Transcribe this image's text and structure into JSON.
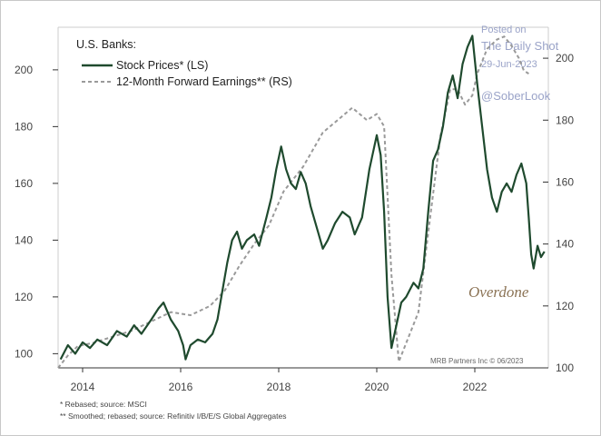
{
  "chart_data": {
    "type": "line",
    "title": "U.S. Banks:",
    "left_axis": {
      "ylim": [
        95,
        215
      ],
      "ticks": [
        100,
        120,
        140,
        160,
        180,
        200
      ]
    },
    "right_axis": {
      "ylim": [
        100,
        210
      ],
      "ticks": [
        100,
        120,
        140,
        160,
        180,
        200
      ]
    },
    "x_axis": {
      "xlim": [
        2013.5,
        2023.5
      ],
      "ticks": [
        2014,
        2016,
        2018,
        2020,
        2022
      ]
    },
    "grid": false,
    "legend_position": "top-left",
    "series": [
      {
        "name": "Stock Prices* (LS)",
        "axis": "left",
        "color": "#1f4a2e",
        "style": "solid",
        "points": [
          [
            2013.55,
            98
          ],
          [
            2013.7,
            103
          ],
          [
            2013.85,
            100
          ],
          [
            2014.0,
            104
          ],
          [
            2014.15,
            102
          ],
          [
            2014.3,
            105
          ],
          [
            2014.5,
            103
          ],
          [
            2014.7,
            108
          ],
          [
            2014.9,
            106
          ],
          [
            2015.05,
            110
          ],
          [
            2015.2,
            107
          ],
          [
            2015.4,
            112
          ],
          [
            2015.55,
            116
          ],
          [
            2015.65,
            118
          ],
          [
            2015.8,
            112
          ],
          [
            2015.95,
            108
          ],
          [
            2016.05,
            103
          ],
          [
            2016.1,
            98
          ],
          [
            2016.2,
            103
          ],
          [
            2016.35,
            105
          ],
          [
            2016.5,
            104
          ],
          [
            2016.65,
            107
          ],
          [
            2016.75,
            112
          ],
          [
            2016.85,
            122
          ],
          [
            2016.95,
            132
          ],
          [
            2017.05,
            140
          ],
          [
            2017.15,
            143
          ],
          [
            2017.25,
            137
          ],
          [
            2017.35,
            140
          ],
          [
            2017.5,
            142
          ],
          [
            2017.6,
            138
          ],
          [
            2017.75,
            148
          ],
          [
            2017.85,
            155
          ],
          [
            2017.95,
            165
          ],
          [
            2018.05,
            173
          ],
          [
            2018.15,
            165
          ],
          [
            2018.25,
            160
          ],
          [
            2018.35,
            158
          ],
          [
            2018.45,
            164
          ],
          [
            2018.55,
            160
          ],
          [
            2018.65,
            152
          ],
          [
            2018.8,
            143
          ],
          [
            2018.9,
            137
          ],
          [
            2019.0,
            140
          ],
          [
            2019.15,
            146
          ],
          [
            2019.3,
            150
          ],
          [
            2019.45,
            148
          ],
          [
            2019.55,
            142
          ],
          [
            2019.7,
            148
          ],
          [
            2019.85,
            165
          ],
          [
            2020.0,
            177
          ],
          [
            2020.08,
            170
          ],
          [
            2020.15,
            150
          ],
          [
            2020.22,
            120
          ],
          [
            2020.3,
            102
          ],
          [
            2020.4,
            110
          ],
          [
            2020.5,
            118
          ],
          [
            2020.6,
            120
          ],
          [
            2020.75,
            125
          ],
          [
            2020.85,
            123
          ],
          [
            2020.95,
            130
          ],
          [
            2021.05,
            150
          ],
          [
            2021.15,
            168
          ],
          [
            2021.25,
            172
          ],
          [
            2021.35,
            180
          ],
          [
            2021.45,
            192
          ],
          [
            2021.55,
            198
          ],
          [
            2021.65,
            190
          ],
          [
            2021.75,
            202
          ],
          [
            2021.85,
            208
          ],
          [
            2021.95,
            212
          ],
          [
            2022.05,
            195
          ],
          [
            2022.15,
            180
          ],
          [
            2022.25,
            165
          ],
          [
            2022.35,
            155
          ],
          [
            2022.45,
            150
          ],
          [
            2022.55,
            157
          ],
          [
            2022.65,
            160
          ],
          [
            2022.75,
            157
          ],
          [
            2022.85,
            163
          ],
          [
            2022.95,
            167
          ],
          [
            2023.05,
            160
          ],
          [
            2023.1,
            148
          ],
          [
            2023.15,
            135
          ],
          [
            2023.2,
            130
          ],
          [
            2023.28,
            138
          ],
          [
            2023.35,
            134
          ],
          [
            2023.42,
            136
          ]
        ]
      },
      {
        "name": "12-Month Forward Earnings** (RS)",
        "axis": "right",
        "color": "#9a9a9a",
        "style": "dashed",
        "points": [
          [
            2013.5,
            100
          ],
          [
            2013.7,
            104
          ],
          [
            2013.9,
            107
          ],
          [
            2014.2,
            108
          ],
          [
            2014.6,
            110
          ],
          [
            2015.0,
            112
          ],
          [
            2015.4,
            115
          ],
          [
            2015.8,
            118
          ],
          [
            2016.2,
            117
          ],
          [
            2016.6,
            120
          ],
          [
            2016.9,
            125
          ],
          [
            2017.2,
            133
          ],
          [
            2017.5,
            140
          ],
          [
            2017.8,
            146
          ],
          [
            2018.1,
            157
          ],
          [
            2018.5,
            165
          ],
          [
            2018.9,
            176
          ],
          [
            2019.2,
            180
          ],
          [
            2019.5,
            184
          ],
          [
            2019.8,
            180
          ],
          [
            2020.0,
            182
          ],
          [
            2020.15,
            178
          ],
          [
            2020.3,
            130
          ],
          [
            2020.45,
            102
          ],
          [
            2020.6,
            108
          ],
          [
            2020.85,
            118
          ],
          [
            2021.1,
            150
          ],
          [
            2021.3,
            175
          ],
          [
            2021.5,
            190
          ],
          [
            2021.65,
            190
          ],
          [
            2021.8,
            185
          ],
          [
            2021.95,
            188
          ],
          [
            2022.05,
            195
          ],
          [
            2022.25,
            203
          ],
          [
            2022.45,
            206
          ],
          [
            2022.6,
            207
          ],
          [
            2022.75,
            204
          ],
          [
            2022.9,
            200
          ],
          [
            2023.0,
            196
          ],
          [
            2023.1,
            195
          ]
        ]
      }
    ],
    "annotations": [
      "Overdone"
    ]
  },
  "footnotes": [
    "*  Rebased; source: MSCI",
    "** Smoothed; rebased; source: Refinitiv I/B/E/S Global Aggregates"
  ],
  "credit": "MRB Partners Inc © 06/2023",
  "watermark": {
    "line1": "Posted on",
    "line2": "The Daily Shot",
    "line3": "29-Jun-2023",
    "line4": "@SoberLook"
  }
}
